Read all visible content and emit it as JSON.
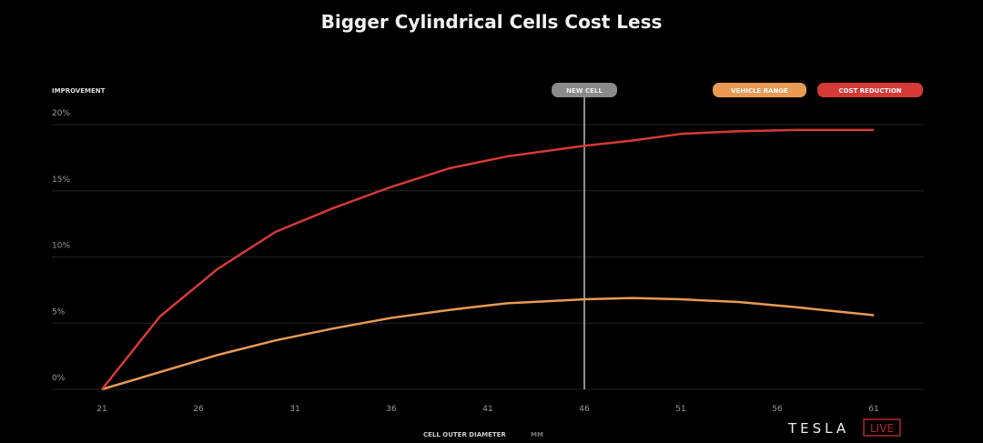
{
  "chart_data": {
    "type": "line",
    "title": "Bigger Cylindrical Cells Cost Less",
    "ylabel": "IMPROVEMENT",
    "xlabel": "CELL OUTER DIAMETER",
    "xunit": "MM",
    "xlim": [
      21,
      61
    ],
    "ylim": [
      0,
      20
    ],
    "xticks": [
      "21",
      "26",
      "31",
      "36",
      "41",
      "46",
      "51",
      "56",
      "61"
    ],
    "yticks": [
      "0%",
      "5%",
      "10%",
      "15%",
      "20%"
    ],
    "grid": true,
    "legend_position": "top-right",
    "marker": {
      "label": "NEW CELL",
      "x": 46,
      "color": "#8a8a8a"
    },
    "series": [
      {
        "name": "VEHICLE RANGE",
        "color": "#e89a55",
        "x": [
          21,
          24,
          27,
          30,
          33,
          36,
          39,
          42,
          46,
          48.5,
          51,
          54,
          57,
          61
        ],
        "y": [
          0,
          1.3,
          2.6,
          3.7,
          4.6,
          5.4,
          6.0,
          6.5,
          6.8,
          6.9,
          6.8,
          6.6,
          6.2,
          5.6
        ]
      },
      {
        "name": "COST REDUCTION",
        "color": "#d63a36",
        "x": [
          21,
          24,
          27,
          30,
          33,
          36,
          39,
          42,
          46,
          48.5,
          51,
          54,
          57,
          61
        ],
        "y": [
          0,
          5.5,
          9.1,
          11.9,
          13.7,
          15.3,
          16.7,
          17.6,
          18.4,
          18.8,
          19.3,
          19.5,
          19.6,
          19.6
        ]
      }
    ]
  },
  "logo": {
    "brand": "TESLA",
    "badge": "LIVE"
  }
}
